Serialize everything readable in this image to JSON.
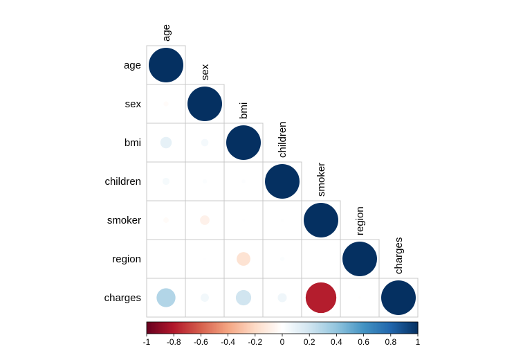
{
  "chart_data": {
    "type": "heatmap",
    "variables": [
      "age",
      "sex",
      "bmi",
      "children",
      "smoker",
      "region",
      "charges"
    ],
    "layout": "lower-triangle",
    "correlations": [
      [
        1.0,
        -0.021,
        0.109,
        0.042,
        -0.025,
        0.002,
        0.299
      ],
      [
        -0.021,
        1.0,
        0.046,
        0.017,
        -0.076,
        0.004,
        0.057
      ],
      [
        0.109,
        0.046,
        1.0,
        0.013,
        0.004,
        -0.157,
        0.198
      ],
      [
        0.042,
        0.017,
        0.013,
        1.0,
        0.008,
        0.017,
        0.068
      ],
      [
        -0.025,
        -0.076,
        0.004,
        0.008,
        1.0,
        -0.002,
        -0.787
      ],
      [
        0.002,
        0.004,
        -0.157,
        0.017,
        -0.002,
        1.0,
        -0.006
      ],
      [
        0.299,
        0.057,
        0.198,
        0.068,
        -0.787,
        -0.006,
        1.0
      ]
    ],
    "colorbar": {
      "range": [
        -1,
        1
      ],
      "ticks": [
        "-1",
        "-0.8",
        "-0.6",
        "-0.4",
        "-0.2",
        "0",
        "0.2",
        "0.4",
        "0.6",
        "0.8",
        "1"
      ],
      "colors": [
        "#67001F",
        "#B2182B",
        "#D6604D",
        "#F4A582",
        "#FDDBC7",
        "#FFFFFF",
        "#D1E5F0",
        "#92C5DE",
        "#4393C3",
        "#2166AC",
        "#053061"
      ]
    },
    "grid_color": "#C8C8C8"
  }
}
